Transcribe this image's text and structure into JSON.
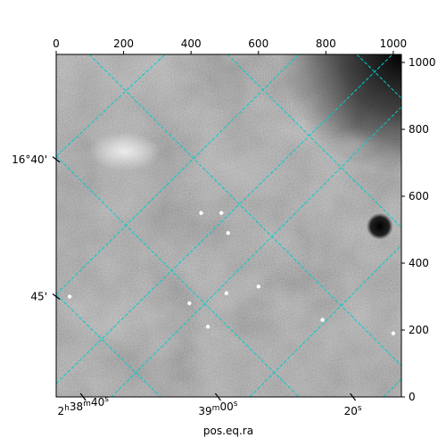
{
  "chart_data": {
    "type": "heatmap",
    "title": "",
    "xlabel": "pos.eq.ra",
    "ylabel": "",
    "colormap": "gray",
    "grid_color": "#00cccc",
    "pixel_x": {
      "range": [
        0,
        1024
      ],
      "ticks": [
        "0",
        "200",
        "400",
        "600",
        "800",
        "1000"
      ],
      "tick_values": [
        0,
        200,
        400,
        600,
        800,
        1000
      ],
      "location": "top"
    },
    "pixel_y": {
      "range": [
        0,
        1024
      ],
      "ticks": [
        "0",
        "200",
        "400",
        "600",
        "800",
        "1000"
      ],
      "tick_values": [
        0,
        200,
        400,
        600,
        800,
        1000
      ],
      "location": "right"
    },
    "ra_ticks": [
      {
        "label": "2h38m40s",
        "parts": [
          "2",
          "h",
          "38",
          "m",
          "40",
          "s"
        ],
        "pix_x": 80
      },
      {
        "label": "39m00s",
        "parts": [
          "",
          "",
          "39",
          "m",
          "00",
          "s"
        ],
        "pix_x": 480
      },
      {
        "label": "20s",
        "parts": [
          "",
          "",
          "",
          "",
          "20",
          "s"
        ],
        "pix_x": 880
      }
    ],
    "dec_ticks": [
      {
        "label": "16°40'",
        "pix_y": 710
      },
      {
        "label": "45'",
        "pix_y": 300
      }
    ],
    "bright_sources": [
      {
        "x": 430,
        "y": 550
      },
      {
        "x": 490,
        "y": 550
      },
      {
        "x": 510,
        "y": 490
      },
      {
        "x": 395,
        "y": 280
      },
      {
        "x": 505,
        "y": 310
      },
      {
        "x": 790,
        "y": 230
      },
      {
        "x": 1000,
        "y": 190
      },
      {
        "x": 450,
        "y": 210
      },
      {
        "x": 40,
        "y": 300
      },
      {
        "x": 600,
        "y": 330
      }
    ],
    "dark_blob": {
      "x": 960,
      "y": 510
    }
  }
}
